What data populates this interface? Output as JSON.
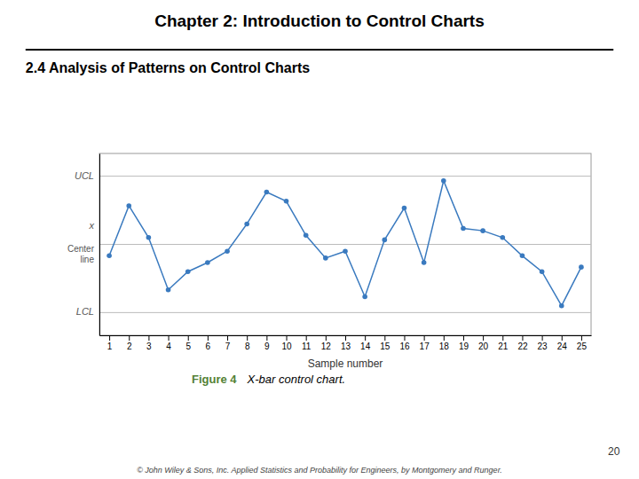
{
  "chart_data": {
    "type": "line",
    "title": "Chapter 2: Introduction to Control Charts",
    "subtitle": "2.4 Analysis of Patterns on Control Charts",
    "x_label": "Sample number",
    "x": [
      1,
      2,
      3,
      4,
      5,
      6,
      7,
      8,
      9,
      10,
      11,
      12,
      13,
      14,
      15,
      16,
      17,
      18,
      19,
      20,
      21,
      22,
      23,
      24,
      25
    ],
    "values": [
      -0.5,
      1.7,
      0.3,
      -2.0,
      -1.2,
      -0.8,
      -0.3,
      0.9,
      2.3,
      1.9,
      0.4,
      -0.6,
      -0.3,
      -2.3,
      0.2,
      1.6,
      -0.8,
      2.8,
      0.7,
      0.6,
      0.3,
      -0.5,
      -1.2,
      -2.7,
      -1.0
    ],
    "color": "#3a7abf",
    "marker": "circle",
    "line_style": "solid",
    "xlim": [
      0.5,
      25.5
    ],
    "xticks": [
      1,
      2,
      3,
      4,
      5,
      6,
      7,
      8,
      9,
      10,
      11,
      12,
      13,
      14,
      15,
      16,
      17,
      18,
      19,
      20,
      21,
      22,
      23,
      24,
      25
    ],
    "ylim": [
      -4.0,
      4.0
    ],
    "yticks": [],
    "tick_labels": "x",
    "grid": false,
    "reference_lines": [
      {
        "value": 3.0,
        "label": "UCL"
      },
      {
        "value": -3.0,
        "label": "LCL"
      },
      {
        "value": 0.0,
        "label": "Center\nline",
        "symbol": "x"
      }
    ],
    "figure_label": "Figure 4",
    "figure_caption": "X-bar control chart.",
    "page_number": "20",
    "footer": "© John Wiley & Sons, Inc.  Applied Statistics and Probability for Engineers, by Montgomery and Runger."
  }
}
